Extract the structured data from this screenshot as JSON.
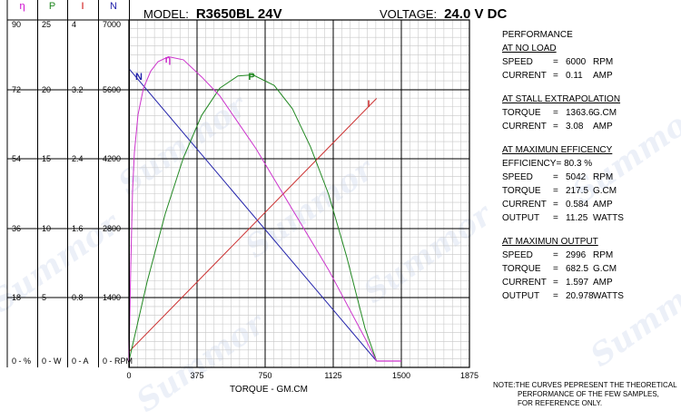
{
  "header": {
    "model_label": "MODEL:",
    "model_value": "R3650BL 24V",
    "voltage_label": "VOLTAGE:",
    "voltage_value": "24.0 V DC"
  },
  "scales": [
    {
      "head": "η",
      "color": "#cc00cc",
      "ticks": [
        "90",
        "72",
        "54",
        "36",
        "18",
        "0 - %"
      ]
    },
    {
      "head": "P",
      "color": "#228822",
      "ticks": [
        "25",
        "20",
        "15",
        "10",
        "5",
        "0 - W"
      ]
    },
    {
      "head": "I",
      "color": "#cc0000",
      "ticks": [
        "4",
        "3.2",
        "2.4",
        "1.6",
        "0.8",
        "0 - A"
      ]
    },
    {
      "head": "N",
      "color": "#2222aa",
      "ticks": [
        "7000",
        "5600",
        "4200",
        "2800",
        "1400",
        "0 - RPM"
      ]
    }
  ],
  "panel": {
    "performance": "PERFORMANCE",
    "no_load": {
      "title": "AT NO LOAD",
      "rows": [
        {
          "k": "SPEED",
          "eq": "=",
          "v": "6000",
          "u": "RPM"
        },
        {
          "k": "CURRENT",
          "eq": "=",
          "v": "0.11",
          "u": "AMP"
        }
      ]
    },
    "stall": {
      "title": "AT STALL EXTRAPOLATION",
      "rows": [
        {
          "k": "TORQUE",
          "eq": "=",
          "v": "1363.6",
          "u": "G.CM"
        },
        {
          "k": "CURRENT",
          "eq": "=",
          "v": "3.08",
          "u": "AMP"
        }
      ]
    },
    "max_eff": {
      "title": "AT MAXIMUN EFFICENCY",
      "efficiency_line": "EFFICIENCY= 80.3  %",
      "rows": [
        {
          "k": "SPEED",
          "eq": "=",
          "v": "5042",
          "u": "RPM"
        },
        {
          "k": "TORQUE",
          "eq": "=",
          "v": "217.5",
          "u": "G.CM"
        },
        {
          "k": "CURRENT",
          "eq": "=",
          "v": "0.584",
          "u": "AMP"
        },
        {
          "k": "OUTPUT",
          "eq": "=",
          "v": "11.25",
          "u": "WATTS"
        }
      ]
    },
    "max_out": {
      "title": "AT MAXIMUN OUTPUT",
      "rows": [
        {
          "k": "SPEED",
          "eq": "=",
          "v": "2996",
          "u": "RPM"
        },
        {
          "k": "TORQUE",
          "eq": "=",
          "v": "682.5",
          "u": "G.CM"
        },
        {
          "k": "CURRENT",
          "eq": "=",
          "v": "1.597",
          "u": "AMP"
        },
        {
          "k": "OUTPUT",
          "eq": "=",
          "v": "20.978",
          "u": "WATTS"
        }
      ]
    }
  },
  "note": {
    "line1": "NOTE:THE CURVES PEPRESENT THE THEORETICAL",
    "line2": "PERFORMANCE OF THE FEW SAMPLES,",
    "line3": "FOR REFERENCE ONLY."
  },
  "watermark": "Summor",
  "chart_data": {
    "type": "line",
    "xlabel": "TORQUE - GM.CM",
    "xlim": [
      0,
      1875
    ],
    "x_ticks": [
      "0",
      "375",
      "750",
      "1125",
      "1500",
      "1875"
    ],
    "grid": true,
    "series": [
      {
        "name": "N",
        "color": "#2222aa",
        "axis": "N",
        "x": [
          0,
          1363.6
        ],
        "y": [
          6000,
          0
        ]
      },
      {
        "name": "I",
        "color": "#cc3333",
        "axis": "I",
        "x": [
          0,
          1363.6
        ],
        "y": [
          0.11,
          3.08
        ]
      },
      {
        "name": "P",
        "color": "#228822",
        "axis": "P",
        "x": [
          0,
          100,
          200,
          300,
          400,
          500,
          600,
          682.5,
          800,
          900,
          1000,
          1100,
          1200,
          1300,
          1363.6
        ],
        "y": [
          0,
          5.8,
          10.8,
          14.9,
          18.0,
          20.0,
          20.9,
          20.978,
          20.2,
          18.5,
          15.7,
          12.2,
          7.6,
          2.4,
          0
        ]
      },
      {
        "name": "η",
        "color": "#cc33cc",
        "axis": "η",
        "x": [
          0,
          5,
          10,
          20,
          30,
          50,
          80,
          120,
          160,
          217.5,
          300,
          400,
          500,
          600,
          700,
          800,
          900,
          1000,
          1100,
          1200,
          1300,
          1363.6
        ],
        "y": [
          0,
          12,
          25,
          45,
          55,
          65,
          72,
          76.5,
          79,
          80.3,
          79.5,
          75,
          70,
          63,
          56,
          48,
          40,
          32,
          24,
          15,
          6,
          0
        ]
      }
    ],
    "axes": {
      "η": {
        "min": 0,
        "max": 90
      },
      "P": {
        "min": 0,
        "max": 25
      },
      "I": {
        "min": 0,
        "max": 4
      },
      "N": {
        "min": 0,
        "max": 7000
      }
    }
  }
}
